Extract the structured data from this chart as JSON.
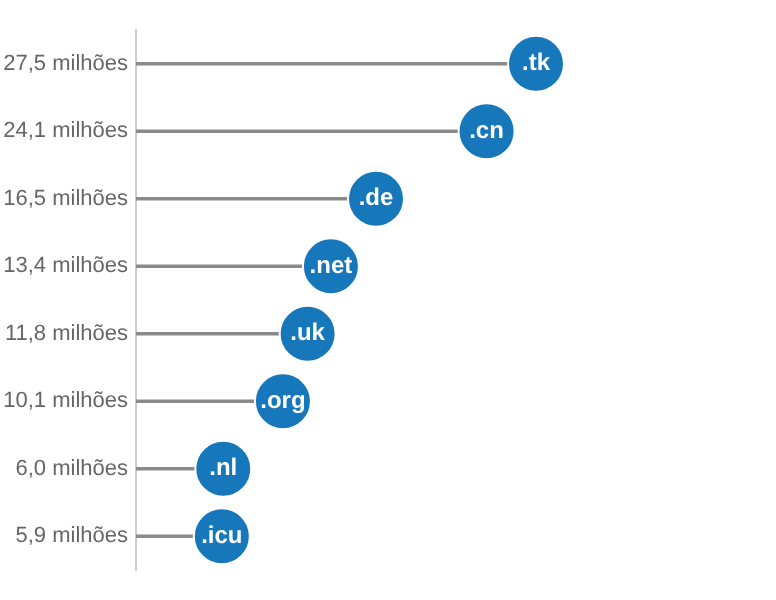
{
  "chart_data": {
    "type": "lollipop",
    "orientation": "horizontal",
    "categories": [
      ".tk",
      ".cn",
      ".de",
      ".net",
      ".uk",
      ".org",
      ".nl",
      ".icu"
    ],
    "values": [
      27.5,
      24.1,
      16.5,
      13.4,
      11.8,
      10.1,
      6.0,
      5.9
    ],
    "value_labels": [
      "27,5 milhões",
      "24,1 milhões",
      "16,5 milhões",
      "13,4 milhões",
      "11,8 milhões",
      "10,1 milhões",
      "6,0 milhões",
      "5,9 milhões"
    ],
    "color": "#1677bb"
  }
}
